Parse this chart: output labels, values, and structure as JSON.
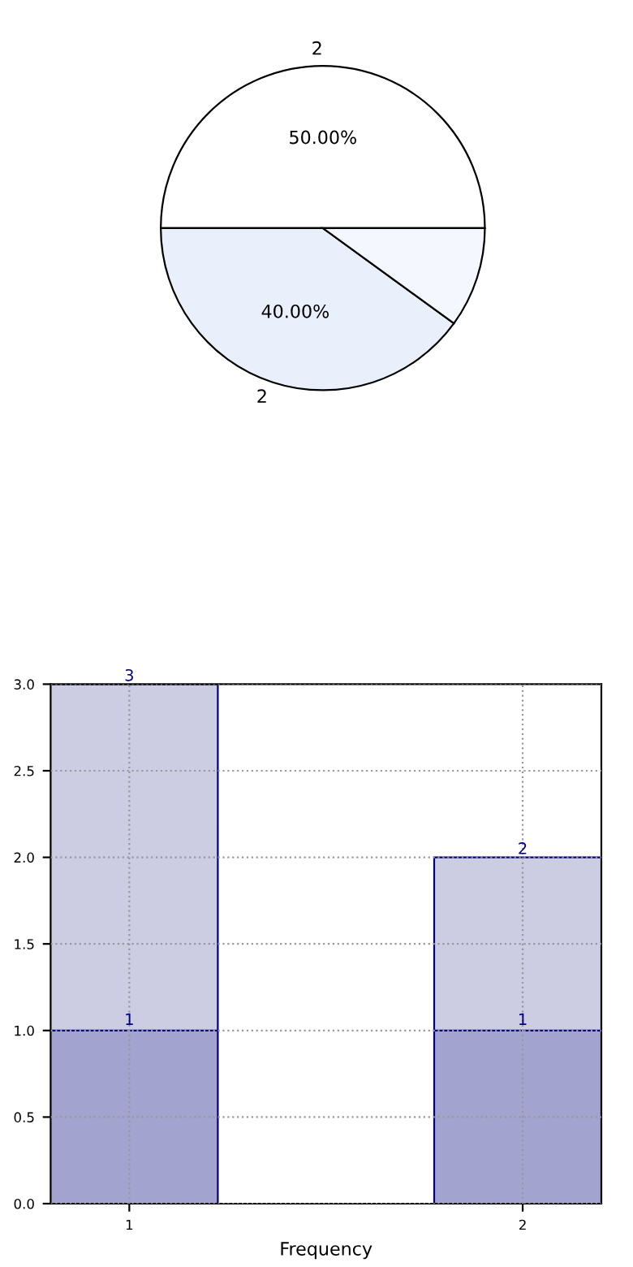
{
  "chart_data": [
    {
      "type": "pie",
      "categories": [
        "2",
        "2",
        null
      ],
      "values": [
        50,
        40,
        10
      ],
      "value_labels": [
        "50.00%",
        "40.00%",
        null
      ],
      "colors": [
        "#ffffff",
        "#eaf0fb",
        "#f4f7fd"
      ]
    },
    {
      "type": "bar",
      "stacked": true,
      "categories": [
        "1",
        "2"
      ],
      "xlabel": "Frequency",
      "ylim": [
        0,
        3
      ],
      "yticks": [
        {
          "value": 0,
          "label": "0.0"
        },
        {
          "value": 0.5,
          "label": "0.5"
        },
        {
          "value": 1,
          "label": "1.0"
        },
        {
          "value": 1.5,
          "label": "1.5"
        },
        {
          "value": 2,
          "label": "2.0"
        },
        {
          "value": 2.5,
          "label": "2.5"
        },
        {
          "value": 3,
          "label": "3.0"
        }
      ],
      "grid": true,
      "totals": [
        "3",
        "2"
      ],
      "series": [
        {
          "color": "#a3a3cf",
          "values": [
            1,
            1
          ],
          "value_labels": [
            "1",
            "1"
          ]
        },
        {
          "color": "#ccccE3",
          "values": [
            2,
            1
          ],
          "value_labels": [
            null,
            null
          ]
        }
      ]
    }
  ]
}
